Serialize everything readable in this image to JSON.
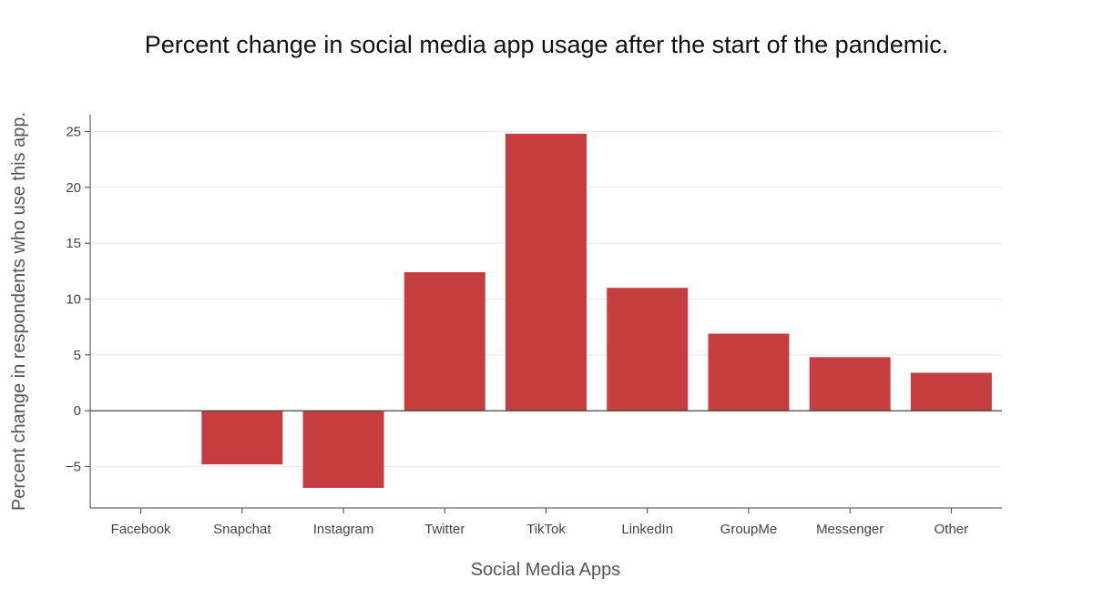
{
  "chart_data": {
    "type": "bar",
    "title": "Percent change in social media app usage after the start of the pandemic.",
    "xlabel": "Social Media Apps",
    "ylabel": "Percent change in respondents who use this app.",
    "categories": [
      "Facebook",
      "Snapchat",
      "Instagram",
      "Twitter",
      "TikTok",
      "LinkedIn",
      "GroupMe",
      "Messenger",
      "Other"
    ],
    "values": [
      0,
      -4.8,
      -6.9,
      12.4,
      24.8,
      11.0,
      6.9,
      4.8,
      3.4
    ],
    "ylim": [
      -8.7,
      26.5
    ],
    "yticks": [
      -5,
      0,
      5,
      10,
      15,
      20,
      25
    ],
    "grid": true,
    "bar_color": "#c63d3f",
    "grid_color": "#e8e8e8",
    "axis_color": "#444444"
  }
}
